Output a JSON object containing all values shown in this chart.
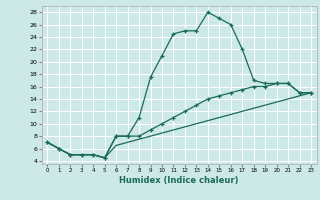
{
  "xlabel": "Humidex (Indice chaleur)",
  "bg_color": "#cce8e8",
  "grid_color": "#ffffff",
  "line_color": "#1a6b5a",
  "xlim": [
    -0.5,
    23.5
  ],
  "ylim": [
    3.5,
    29
  ],
  "xticks": [
    0,
    1,
    2,
    3,
    4,
    5,
    6,
    7,
    8,
    9,
    10,
    11,
    12,
    13,
    14,
    15,
    16,
    17,
    18,
    19,
    20,
    21,
    22,
    23
  ],
  "yticks": [
    4,
    6,
    8,
    10,
    12,
    14,
    16,
    18,
    20,
    22,
    24,
    26,
    28
  ],
  "line1_x": [
    0,
    1,
    2,
    3,
    4,
    5,
    6,
    7,
    8,
    9,
    10,
    11,
    12,
    13,
    14,
    15,
    16,
    17,
    18,
    19,
    20,
    21,
    22,
    23
  ],
  "line1_y": [
    7,
    6,
    5,
    5,
    5,
    4.5,
    8,
    8,
    11,
    17.5,
    21,
    24.5,
    25,
    25,
    28,
    27,
    26,
    22,
    17,
    16.5,
    16.5,
    16.5,
    15,
    15
  ],
  "line2_x": [
    0,
    1,
    2,
    3,
    4,
    5,
    6,
    7,
    8,
    9,
    10,
    11,
    12,
    13,
    14,
    15,
    16,
    17,
    18,
    19,
    20,
    21,
    22,
    23
  ],
  "line2_y": [
    7,
    6,
    5,
    5,
    5,
    4.5,
    8,
    8,
    8,
    9,
    10,
    11,
    12,
    13,
    14,
    14.5,
    15,
    15.5,
    16,
    16,
    16.5,
    16.5,
    15,
    15
  ],
  "line3_x": [
    0,
    1,
    2,
    3,
    4,
    5,
    6,
    7,
    8,
    9,
    10,
    11,
    12,
    13,
    14,
    15,
    16,
    17,
    18,
    19,
    20,
    21,
    22,
    23
  ],
  "line3_y": [
    7,
    6,
    5,
    5,
    5,
    4.5,
    6.5,
    7,
    7.5,
    8,
    8.5,
    9,
    9.5,
    10,
    10.5,
    11,
    11.5,
    12,
    12.5,
    13,
    13.5,
    14,
    14.5,
    15
  ]
}
